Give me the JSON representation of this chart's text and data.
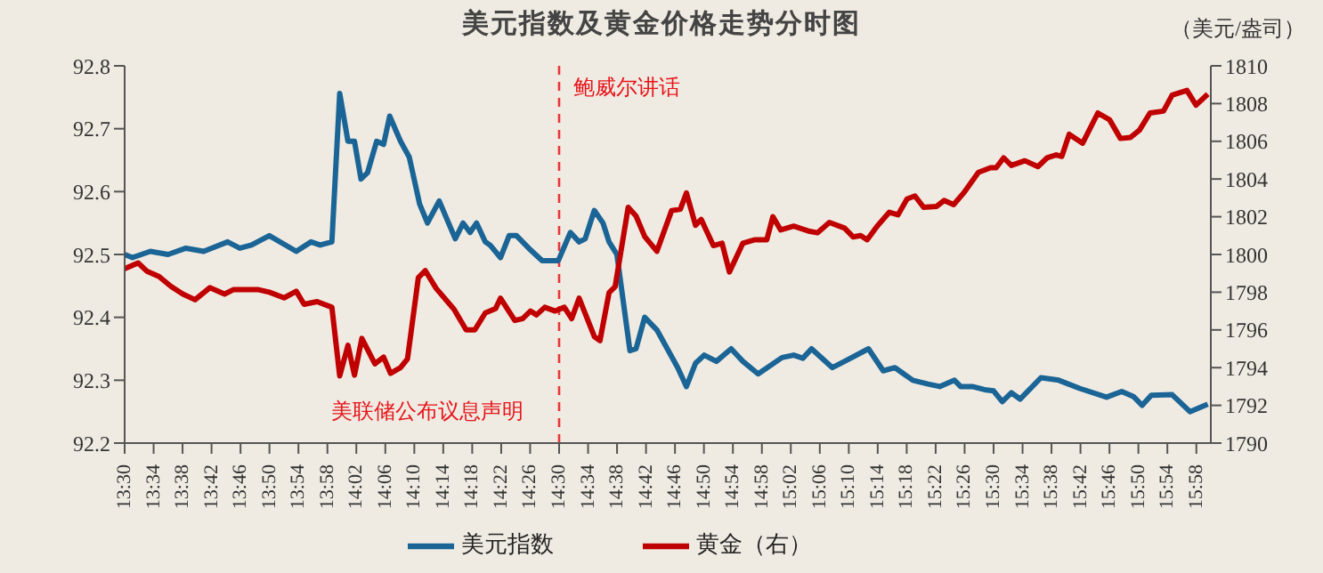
{
  "chart_data": {
    "type": "line",
    "title": "美元指数及黄金价格走势分时图",
    "y2label": "（美元/盎司）",
    "annotations": [
      "鲍威尔讲话",
      "美联储公布议息声明"
    ],
    "ref_lines": [
      {
        "axis": "x",
        "value": 14.5,
        "color": "#e8363a",
        "line_style": "dashed"
      }
    ],
    "xlim": [
      13.5,
      16.0
    ],
    "xticks": [
      {
        "value": 13.5,
        "label": "13:30"
      },
      {
        "value": 13.5667,
        "label": "13:34"
      },
      {
        "value": 13.6333,
        "label": "13:38"
      },
      {
        "value": 13.7,
        "label": "13:42"
      },
      {
        "value": 13.7667,
        "label": "13:46"
      },
      {
        "value": 13.8333,
        "label": "13:50"
      },
      {
        "value": 13.9,
        "label": "13:54"
      },
      {
        "value": 13.9667,
        "label": "13:58"
      },
      {
        "value": 14.0333,
        "label": "14:02"
      },
      {
        "value": 14.1,
        "label": "14:06"
      },
      {
        "value": 14.1667,
        "label": "14:10"
      },
      {
        "value": 14.2333,
        "label": "14:14"
      },
      {
        "value": 14.3,
        "label": "14:18"
      },
      {
        "value": 14.3667,
        "label": "14:22"
      },
      {
        "value": 14.4333,
        "label": "14:26"
      },
      {
        "value": 14.5,
        "label": "14:30"
      },
      {
        "value": 14.5667,
        "label": "14:34"
      },
      {
        "value": 14.6333,
        "label": "14:38"
      },
      {
        "value": 14.7,
        "label": "14:42"
      },
      {
        "value": 14.7667,
        "label": "14:46"
      },
      {
        "value": 14.8333,
        "label": "14:50"
      },
      {
        "value": 14.9,
        "label": "14:54"
      },
      {
        "value": 14.9667,
        "label": "14:58"
      },
      {
        "value": 15.0333,
        "label": "15:02"
      },
      {
        "value": 15.1,
        "label": "15:06"
      },
      {
        "value": 15.1667,
        "label": "15:10"
      },
      {
        "value": 15.2333,
        "label": "15:14"
      },
      {
        "value": 15.3,
        "label": "15:18"
      },
      {
        "value": 15.3667,
        "label": "15:22"
      },
      {
        "value": 15.4333,
        "label": "15:26"
      },
      {
        "value": 15.5,
        "label": "15:30"
      },
      {
        "value": 15.5667,
        "label": "15:34"
      },
      {
        "value": 15.6333,
        "label": "15:38"
      },
      {
        "value": 15.7,
        "label": "15:42"
      },
      {
        "value": 15.7667,
        "label": "15:46"
      },
      {
        "value": 15.8333,
        "label": "15:50"
      },
      {
        "value": 15.9,
        "label": "15:54"
      },
      {
        "value": 15.9667,
        "label": "15:58"
      }
    ],
    "ylim": [
      92.2,
      92.8
    ],
    "yticks": [
      92.2,
      92.3,
      92.4,
      92.5,
      92.6,
      92.7,
      92.8
    ],
    "y2lim": [
      1790,
      1810
    ],
    "y2ticks": [
      1790,
      1792,
      1794,
      1796,
      1798,
      1800,
      1802,
      1804,
      1806,
      1808,
      1810
    ],
    "legend": "bottom",
    "marker": "none",
    "line_style": "solid",
    "series": [
      {
        "name": "美元指数",
        "color": "#1a6496",
        "x": [
          13.5,
          13.518,
          13.559,
          13.6,
          13.641,
          13.682,
          13.737,
          13.765,
          13.792,
          13.833,
          13.895,
          13.929,
          13.95,
          13.977,
          13.995,
          14.014,
          14.029,
          14.044,
          14.059,
          14.08,
          14.096,
          14.11,
          14.135,
          14.155,
          14.179,
          14.197,
          14.224,
          14.261,
          14.279,
          14.295,
          14.31,
          14.33,
          14.341,
          14.365,
          14.385,
          14.402,
          14.43,
          14.461,
          14.498,
          14.526,
          14.546,
          14.56,
          14.581,
          14.601,
          14.615,
          14.633,
          14.663,
          14.677,
          14.697,
          14.725,
          14.773,
          14.793,
          14.814,
          14.834,
          14.862,
          14.896,
          14.923,
          14.958,
          15.013,
          15.04,
          15.061,
          15.081,
          15.129,
          15.157,
          15.212,
          15.246,
          15.273,
          15.314,
          15.349,
          15.376,
          15.41,
          15.424,
          15.451,
          15.479,
          15.5,
          15.52,
          15.541,
          15.561,
          15.609,
          15.65,
          15.698,
          15.76,
          15.795,
          15.822,
          15.842,
          15.863,
          15.911,
          15.952,
          15.993
        ],
        "values": [
          92.5,
          92.495,
          92.505,
          92.5,
          92.51,
          92.505,
          92.52,
          92.51,
          92.515,
          92.53,
          92.505,
          92.52,
          92.515,
          92.52,
          92.756,
          92.68,
          92.68,
          92.62,
          92.63,
          92.68,
          92.675,
          92.72,
          92.68,
          92.655,
          92.58,
          92.55,
          92.585,
          92.525,
          92.55,
          92.535,
          92.55,
          92.52,
          92.515,
          92.495,
          92.53,
          92.53,
          92.51,
          92.49,
          92.49,
          92.535,
          92.52,
          92.525,
          92.57,
          92.55,
          92.52,
          92.5,
          92.347,
          92.35,
          92.4,
          92.38,
          92.32,
          92.29,
          92.327,
          92.34,
          92.33,
          92.35,
          92.33,
          92.31,
          92.336,
          92.34,
          92.335,
          92.35,
          92.32,
          92.33,
          92.35,
          92.315,
          92.32,
          92.3,
          92.294,
          92.29,
          92.3,
          92.29,
          92.29,
          92.285,
          92.283,
          92.266,
          92.28,
          92.27,
          92.304,
          92.3,
          92.287,
          92.273,
          92.282,
          92.274,
          92.26,
          92.276,
          92.277,
          92.25,
          92.262
        ]
      },
      {
        "name": "黄金（右）",
        "color": "#c00000",
        "axis": "y2",
        "x": [
          13.5,
          13.531,
          13.552,
          13.579,
          13.607,
          13.634,
          13.662,
          13.696,
          13.73,
          13.751,
          13.806,
          13.833,
          13.867,
          13.895,
          13.913,
          13.943,
          13.977,
          13.995,
          14.014,
          14.029,
          14.046,
          14.076,
          14.096,
          14.112,
          14.135,
          14.151,
          14.176,
          14.192,
          14.217,
          14.258,
          14.286,
          14.306,
          14.33,
          14.354,
          14.365,
          14.398,
          14.416,
          14.434,
          14.448,
          14.467,
          14.491,
          14.512,
          14.529,
          14.546,
          14.581,
          14.594,
          14.615,
          14.629,
          14.659,
          14.677,
          14.697,
          14.725,
          14.759,
          14.779,
          14.793,
          14.814,
          14.827,
          14.855,
          14.875,
          14.892,
          14.923,
          14.951,
          14.978,
          14.992,
          15.01,
          15.04,
          15.074,
          15.095,
          15.122,
          15.157,
          15.177,
          15.194,
          15.209,
          15.232,
          15.26,
          15.28,
          15.301,
          15.319,
          15.339,
          15.369,
          15.386,
          15.408,
          15.431,
          15.465,
          15.493,
          15.506,
          15.523,
          15.541,
          15.572,
          15.602,
          15.623,
          15.644,
          15.657,
          15.674,
          15.705,
          15.74,
          15.767,
          15.792,
          15.815,
          15.836,
          15.86,
          15.891,
          15.911,
          15.945,
          15.966,
          15.993
        ],
        "values": [
          1799.24,
          1799.55,
          1799.1,
          1798.83,
          1798.3,
          1797.9,
          1797.6,
          1798.24,
          1797.9,
          1798.14,
          1798.14,
          1798.0,
          1797.7,
          1798.05,
          1797.36,
          1797.5,
          1797.2,
          1793.56,
          1795.18,
          1793.6,
          1795.55,
          1794.2,
          1794.56,
          1793.7,
          1794.0,
          1794.46,
          1798.77,
          1799.14,
          1798.2,
          1797.1,
          1796.0,
          1796.0,
          1796.9,
          1797.14,
          1797.68,
          1796.5,
          1796.6,
          1797.0,
          1796.8,
          1797.2,
          1797.0,
          1797.2,
          1796.6,
          1797.68,
          1795.65,
          1795.43,
          1797.98,
          1798.3,
          1802.5,
          1802.04,
          1800.95,
          1800.17,
          1802.33,
          1802.4,
          1803.26,
          1801.55,
          1801.86,
          1800.47,
          1800.6,
          1799.07,
          1800.6,
          1800.78,
          1800.78,
          1802.0,
          1801.3,
          1801.5,
          1801.24,
          1801.15,
          1801.7,
          1801.4,
          1800.93,
          1801.0,
          1800.78,
          1801.5,
          1802.24,
          1802.1,
          1802.95,
          1803.1,
          1802.5,
          1802.55,
          1802.86,
          1802.64,
          1803.26,
          1804.35,
          1804.6,
          1804.6,
          1805.12,
          1804.72,
          1804.97,
          1804.66,
          1805.12,
          1805.28,
          1805.2,
          1806.37,
          1805.9,
          1807.5,
          1807.14,
          1806.15,
          1806.2,
          1806.6,
          1807.5,
          1807.6,
          1808.45,
          1808.7,
          1807.92,
          1808.5
        ]
      }
    ]
  }
}
